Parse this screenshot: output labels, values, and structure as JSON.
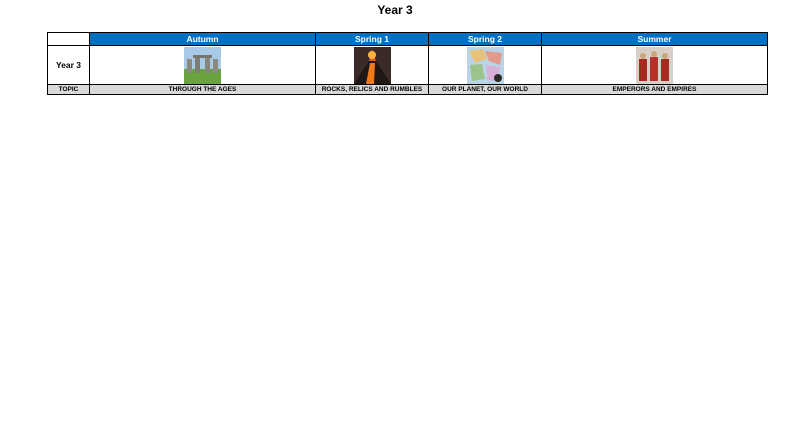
{
  "header": {
    "title": "Year 3"
  },
  "table": {
    "columns": [
      "Autumn",
      "Spring 1",
      "Spring 2",
      "Summer"
    ],
    "row_label": "Year 3",
    "topic_label": "TOPIC",
    "topics": [
      "THROUGH THE AGES",
      "ROCKS, RELICS AND RUMBLES",
      "OUR PLANET, OUR WORLD",
      "EMPERORS AND EMPIRES"
    ]
  }
}
